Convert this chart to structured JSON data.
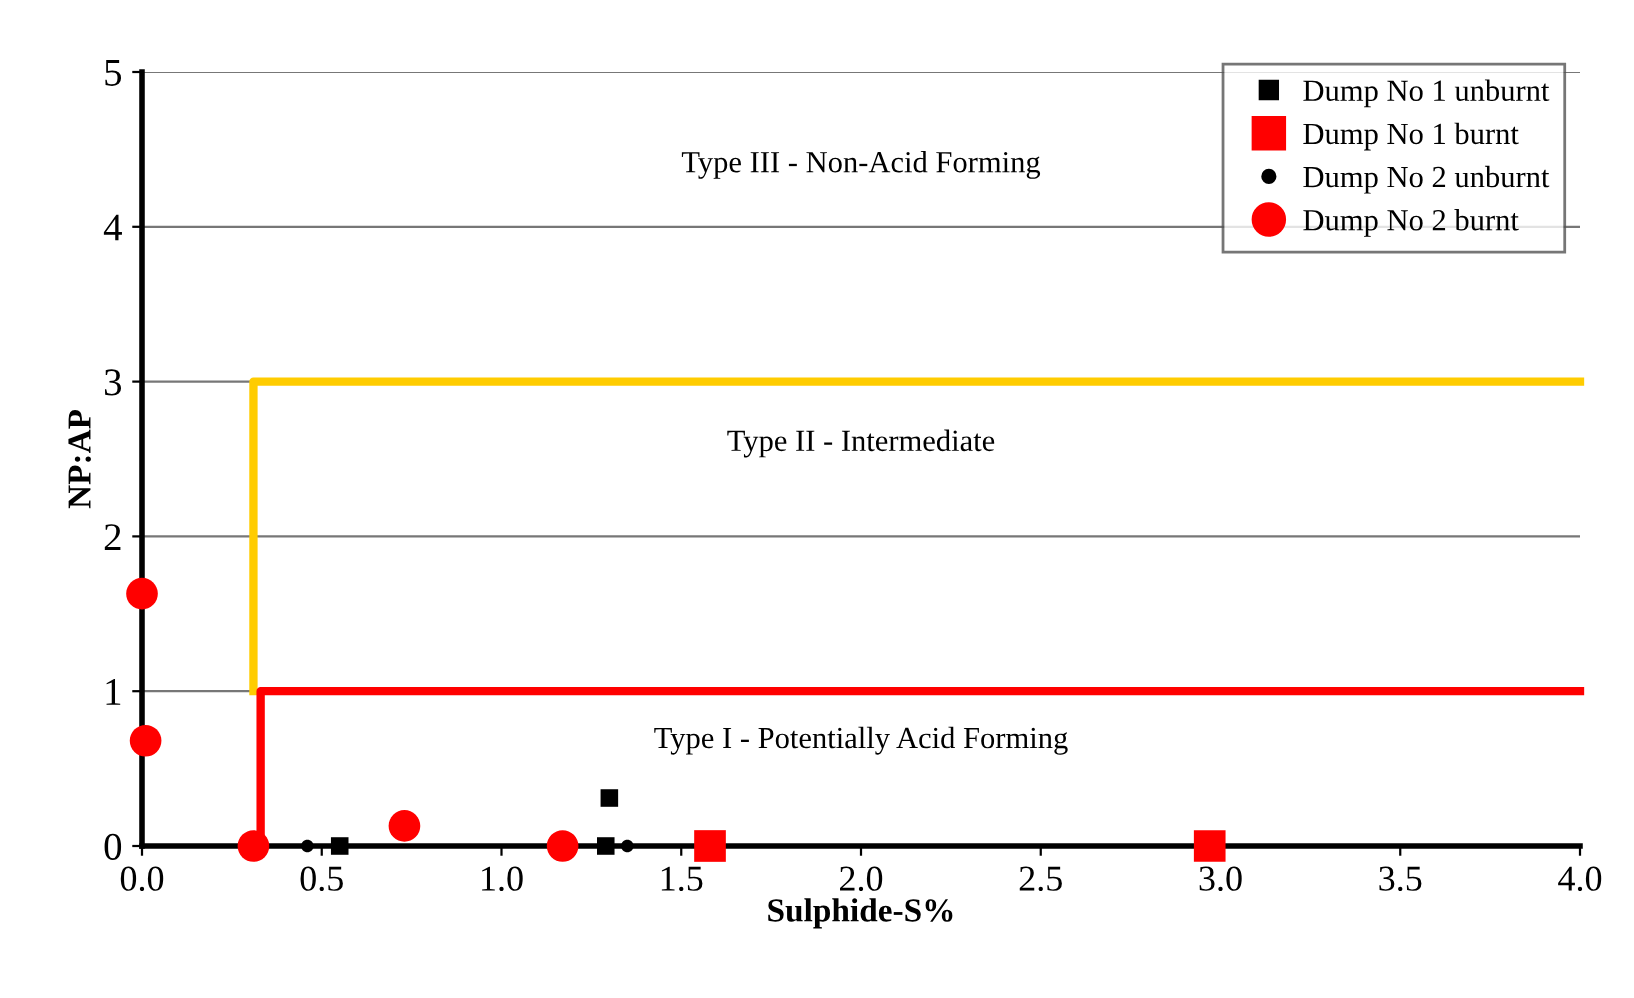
{
  "chart_data": {
    "type": "scatter",
    "xlabel": "Sulphide-S%",
    "ylabel": "NP:AP",
    "xlim": [
      0,
      4
    ],
    "xticks": [
      {
        "value": 0,
        "label": "0.0"
      },
      {
        "value": 0.5,
        "label": "0.5"
      },
      {
        "value": 1,
        "label": "1.0"
      },
      {
        "value": 1.5,
        "label": "1.5"
      },
      {
        "value": 2,
        "label": "2.0"
      },
      {
        "value": 2.5,
        "label": "2.5"
      },
      {
        "value": 3,
        "label": "3.0"
      },
      {
        "value": 3.5,
        "label": "3.5"
      },
      {
        "value": 4,
        "label": "4.0"
      }
    ],
    "ylim": [
      0,
      5
    ],
    "yticks": [
      0,
      1,
      2,
      3,
      4,
      5
    ],
    "grid": "y",
    "legend": "top right",
    "series": [
      {
        "type": "line",
        "color": "#ffcc00",
        "x": [
          0.31,
          0.31,
          4.0
        ],
        "values": [
          1,
          3,
          3
        ],
        "marker": "none"
      },
      {
        "type": "line",
        "color": "#ff0000",
        "x": [
          0.33,
          0.33,
          4.0
        ],
        "values": [
          0,
          1,
          1
        ],
        "marker": "none"
      },
      {
        "name": "Dump No 1 unburnt",
        "color": "#000000",
        "marker": "square",
        "x": [
          0.55,
          1.3,
          1.29
        ],
        "values": [
          0,
          0.31,
          0
        ]
      },
      {
        "name": "Dump No 1 burnt",
        "color": "#ff0000",
        "marker": "square",
        "x": [
          1.58,
          2.97
        ],
        "values": [
          0,
          0
        ]
      },
      {
        "name": "Dump No 2 unburnt",
        "color": "#000000",
        "marker": "circle",
        "x": [
          0.46,
          1.35
        ],
        "values": [
          0,
          0
        ]
      },
      {
        "name": "Dump No 2 burnt",
        "color": "#ff0000",
        "marker": "circle",
        "x": [
          0.0,
          0.01,
          0.31,
          0.73,
          1.17
        ],
        "values": [
          1.63,
          0.68,
          0,
          0.13,
          0
        ]
      }
    ],
    "annotations": [
      "Type III - Non-Acid Forming",
      "Type II - Intermediate",
      "Type I - Potentially Acid Forming"
    ]
  }
}
